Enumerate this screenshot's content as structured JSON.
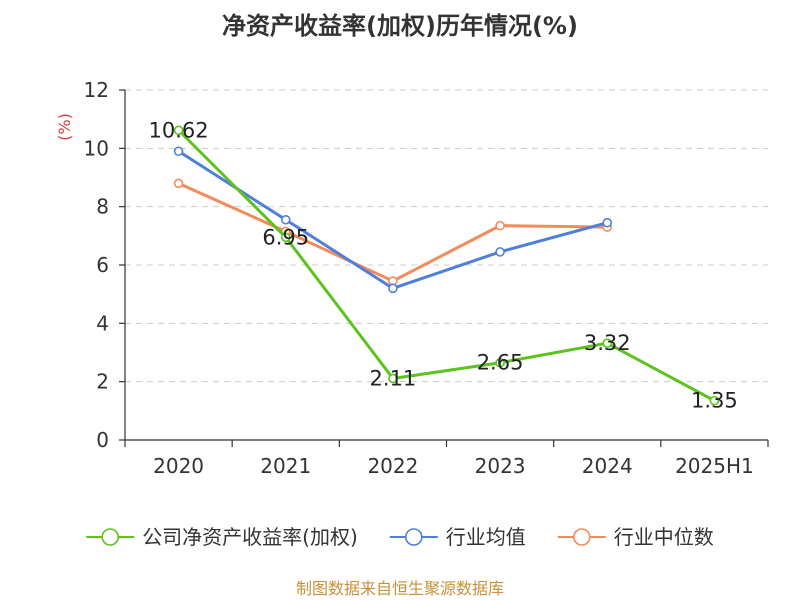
{
  "chart_data": {
    "type": "line",
    "title": "净资产收益率(加权)历年情况(%)",
    "ylabel": "(%)",
    "xlabel": "",
    "categories": [
      "2020",
      "2021",
      "2022",
      "2023",
      "2024",
      "2025H1"
    ],
    "ylim": [
      0,
      12
    ],
    "yticks": [
      0,
      2,
      4,
      6,
      8,
      10,
      12
    ],
    "grid": true,
    "legend_position": "bottom",
    "series": [
      {
        "name": "公司净资产收益率(加权)",
        "color": "#5bc21e",
        "values": [
          10.62,
          6.95,
          2.11,
          2.65,
          3.32,
          1.35
        ],
        "data_labels": [
          "10.62",
          "6.95",
          "2.11",
          "2.65",
          "3.32",
          "1.35"
        ]
      },
      {
        "name": "行业均值",
        "color": "#4f7fdc",
        "values": [
          9.9,
          7.55,
          5.2,
          6.45,
          7.45,
          null
        ]
      },
      {
        "name": "行业中位数",
        "color": "#f48b5a",
        "values": [
          8.8,
          7.15,
          5.45,
          7.35,
          7.3,
          null
        ]
      }
    ]
  },
  "source": "制图数据来自恒生聚源数据库",
  "colors": {
    "unit_label": "#d93a3a",
    "source": "#c8903a",
    "axis": "#333333",
    "grid": "#cccccc"
  }
}
